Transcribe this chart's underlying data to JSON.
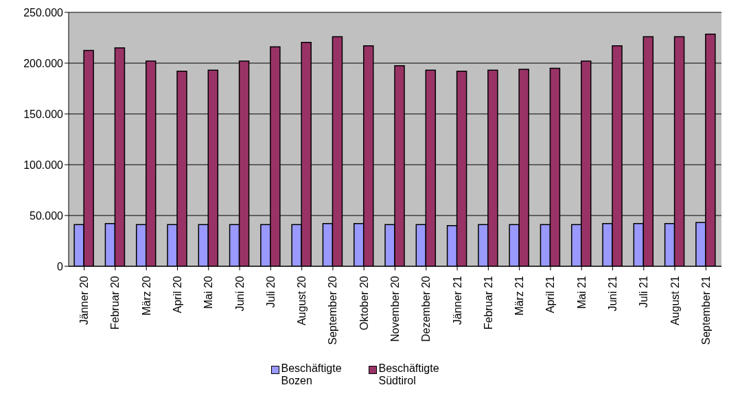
{
  "chart_data": {
    "type": "bar",
    "categories": [
      "Jänner 20",
      "Februar 20",
      "März 20",
      "April 20",
      "Mai 20",
      "Juni 20",
      "Juli 20",
      "August 20",
      "September 20",
      "Oktober 20",
      "November 20",
      "Dezember 20",
      "Jänner 21",
      "Februar 21",
      "März 21",
      "April 21",
      "Mai 21",
      "Juni 21",
      "Juli 21",
      "August 21",
      "September 21"
    ],
    "series": [
      {
        "name": "Beschäftigte Bozen",
        "color": "#9999ff",
        "values": [
          41000,
          42000,
          41000,
          41000,
          41000,
          41000,
          41000,
          41000,
          42000,
          42000,
          41000,
          41000,
          40000,
          41000,
          41000,
          41000,
          41000,
          42000,
          42000,
          42000,
          43000
        ]
      },
      {
        "name": "Beschäftigte Südtirol",
        "color": "#993366",
        "values": [
          212500,
          215000,
          202000,
          192000,
          193000,
          202000,
          216000,
          220500,
          226000,
          217000,
          197500,
          193000,
          192000,
          193000,
          194000,
          195000,
          202000,
          217000,
          226000,
          226000,
          228500
        ]
      }
    ],
    "ylim": [
      0,
      250000
    ],
    "yticks": [
      {
        "value": 0,
        "label": "0"
      },
      {
        "value": 50000,
        "label": "50.000"
      },
      {
        "value": 100000,
        "label": "100.000"
      },
      {
        "value": 150000,
        "label": "150.000"
      },
      {
        "value": 200000,
        "label": "200.000"
      },
      {
        "value": 250000,
        "label": "250.000"
      }
    ],
    "grid": "y",
    "legend": "bottom"
  }
}
